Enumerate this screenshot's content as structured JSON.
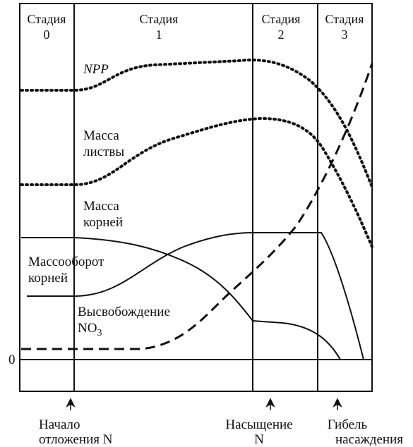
{
  "stages": [
    {
      "label": "Стадия",
      "number": "0"
    },
    {
      "label": "Стадия",
      "number": "1"
    },
    {
      "label": "Стадия",
      "number": "2"
    },
    {
      "label": "Стадия",
      "number": "3"
    }
  ],
  "zero_label": "0",
  "curves": {
    "npp": "NPP",
    "leaf_mass": [
      "Масса",
      "листвы"
    ],
    "root_mass": [
      "Масса",
      "корней"
    ],
    "root_turnover": [
      "Массооборот",
      "корней"
    ],
    "no3_release": {
      "line1": "Высвобождение",
      "formula": "NO",
      "subscript": "3"
    }
  },
  "events": [
    [
      "Начало",
      "отложения N"
    ],
    [
      "Насыщение",
      "N"
    ],
    [
      "Гибель",
      "насаждения"
    ]
  ]
}
